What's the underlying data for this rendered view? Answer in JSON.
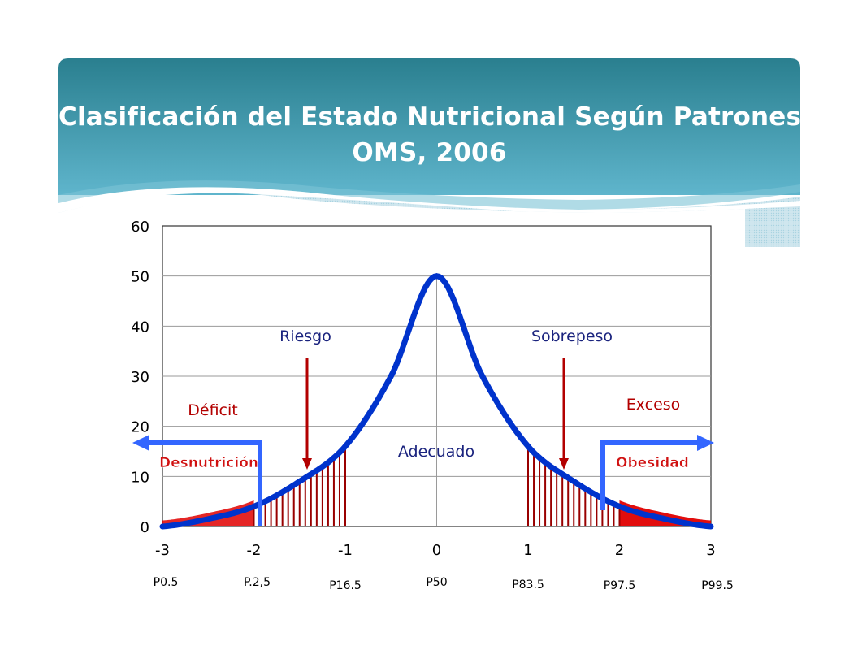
{
  "slide": {
    "title_line1": "Clasificación del Estado Nutricional Según Patrones",
    "title_line2": "OMS, 2006"
  },
  "colors": {
    "banner_top": "#2a7f8f",
    "banner_bottom": "#5fb5cc",
    "curve": "#0033cc",
    "zone_red": "#e00000",
    "hatch": "#990000",
    "arrow_blue": "#3366ff",
    "label_blue": "#1a237e",
    "label_red": "#b30000"
  },
  "chart_data": {
    "type": "line",
    "title": "",
    "xlabel": "",
    "ylabel": "",
    "xlim": [
      -3,
      3
    ],
    "ylim": [
      0,
      60
    ],
    "grid": true,
    "x_ticks": [
      {
        "value": -3,
        "label": "-3",
        "red": false
      },
      {
        "value": -2,
        "label": "-2",
        "red": true
      },
      {
        "value": -1,
        "label": "-1",
        "red": false
      },
      {
        "value": 0,
        "label": "0",
        "red": false
      },
      {
        "value": 1,
        "label": "1",
        "red": false
      },
      {
        "value": 2,
        "label": "2",
        "red": true
      },
      {
        "value": 3,
        "label": "3",
        "red": false
      }
    ],
    "y_ticks": [
      0,
      10,
      20,
      30,
      40,
      50,
      60
    ],
    "percentiles": [
      {
        "x": -3,
        "label": "P0.5",
        "red": false
      },
      {
        "x": -2,
        "label": "P.2,5",
        "red": true
      },
      {
        "x": -1,
        "label": "P16.5",
        "red": false
      },
      {
        "x": 0,
        "label": "P50",
        "red": false
      },
      {
        "x": 1,
        "label": "P83.5",
        "red": false
      },
      {
        "x": 2,
        "label": "P97.5",
        "red": true
      },
      {
        "x": 3,
        "label": "P99.5",
        "red": false
      }
    ],
    "series": [
      {
        "x": [
          -3,
          -2.5,
          -2,
          -1.5,
          -1,
          -0.5,
          0,
          0.5,
          1,
          1.5,
          2,
          2.5,
          3
        ],
        "y": [
          0,
          1.5,
          4,
          9,
          16,
          30,
          50,
          30,
          16,
          9,
          4,
          1.5,
          0
        ]
      }
    ],
    "hatched_regions": [
      [
        -2,
        -1
      ],
      [
        1,
        2
      ]
    ],
    "filled_regions": [
      [
        -3,
        -2
      ],
      [
        2,
        3
      ]
    ],
    "annotations": {
      "riesgo": "Riesgo",
      "sobrepeso": "Sobrepeso",
      "deficit": "Déficit",
      "exceso": "Exceso",
      "adecuado": "Adecuado",
      "desnutricion": "Desnutrición",
      "obesidad": "Obesidad"
    }
  }
}
